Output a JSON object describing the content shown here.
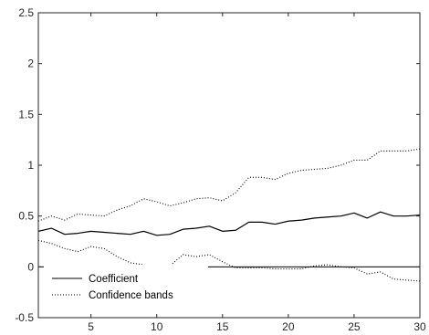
{
  "chart_data": {
    "type": "line",
    "title": "",
    "xlabel": "",
    "ylabel": "",
    "xlim": [
      1,
      30
    ],
    "ylim": [
      -0.5,
      2.5
    ],
    "xticks": [
      5,
      10,
      15,
      20,
      25,
      30
    ],
    "yticks": [
      -0.5,
      0,
      0.5,
      1,
      1.5,
      2,
      2.5
    ],
    "xtick_labels": [
      "5",
      "10",
      "15",
      "20",
      "25",
      "30"
    ],
    "ytick_labels": [
      "-0.5",
      "0",
      "0.5",
      "1",
      "1.5",
      "2",
      "2.5"
    ],
    "grid": false,
    "legend_position": "bottom-left",
    "zero_line": 0,
    "x": [
      1,
      2,
      3,
      4,
      5,
      6,
      7,
      8,
      9,
      10,
      11,
      12,
      13,
      14,
      15,
      16,
      17,
      18,
      19,
      20,
      21,
      22,
      23,
      24,
      25,
      26,
      27,
      28,
      29,
      30
    ],
    "series": [
      {
        "name": "Coefficient",
        "style": "solid",
        "color": "#000000",
        "values": [
          0.35,
          0.38,
          0.32,
          0.33,
          0.35,
          0.34,
          0.33,
          0.32,
          0.35,
          0.31,
          0.32,
          0.37,
          0.38,
          0.4,
          0.35,
          0.36,
          0.44,
          0.44,
          0.42,
          0.45,
          0.46,
          0.48,
          0.49,
          0.5,
          0.53,
          0.48,
          0.54,
          0.5,
          0.5,
          0.51
        ]
      },
      {
        "name": "Confidence bands",
        "style": "dotted",
        "color": "#000000",
        "values": [
          0.45,
          0.5,
          0.46,
          0.52,
          0.51,
          0.5,
          0.56,
          0.6,
          0.67,
          0.64,
          0.6,
          0.63,
          0.67,
          0.68,
          0.65,
          0.73,
          0.88,
          0.88,
          0.86,
          0.92,
          0.95,
          0.96,
          0.97,
          1.0,
          1.05,
          1.05,
          1.14,
          1.14,
          1.14,
          1.16
        ]
      },
      {
        "name": "",
        "style": "dotted",
        "color": "#000000",
        "values": [
          0.26,
          0.23,
          0.18,
          0.15,
          0.2,
          0.18,
          0.1,
          0.04,
          0.02,
          -0.02,
          0.01,
          0.12,
          0.1,
          0.12,
          0.05,
          -0.01,
          -0.01,
          -0.01,
          -0.02,
          -0.02,
          -0.02,
          0.01,
          0.02,
          0.0,
          -0.01,
          -0.07,
          -0.05,
          -0.12,
          -0.13,
          -0.14
        ]
      }
    ],
    "legend": [
      {
        "label": "Coefficient",
        "style": "solid"
      },
      {
        "label": "Confidence bands",
        "style": "dotted"
      }
    ]
  }
}
